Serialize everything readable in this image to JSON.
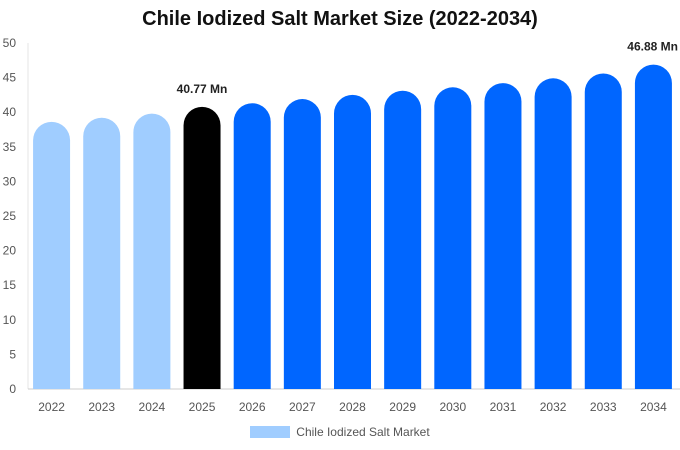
{
  "chart_data": {
    "type": "bar",
    "title": "Chile Iodized Salt Market Size (2022-2034)",
    "xlabel": "",
    "ylabel": "",
    "categories": [
      "2022",
      "2023",
      "2024",
      "2025",
      "2026",
      "2027",
      "2028",
      "2029",
      "2030",
      "2031",
      "2032",
      "2033",
      "2034"
    ],
    "series": [
      {
        "name": "Chile Iodized Salt Market",
        "values": [
          38.6,
          39.2,
          39.8,
          40.77,
          41.3,
          41.9,
          42.5,
          43.1,
          43.6,
          44.2,
          44.9,
          45.6,
          46.88
        ]
      }
    ],
    "bar_colors": [
      "#a0cdff",
      "#a0cdff",
      "#a0cdff",
      "#000000",
      "#0066ff",
      "#0066ff",
      "#0066ff",
      "#0066ff",
      "#0066ff",
      "#0066ff",
      "#0066ff",
      "#0066ff",
      "#0066ff"
    ],
    "data_labels": [
      {
        "category": "2025",
        "text": "40.77 Mn"
      },
      {
        "category": "2034",
        "text": "46.88 Mn"
      }
    ],
    "ylim": [
      0,
      50
    ],
    "yticks": [
      0,
      5,
      10,
      15,
      20,
      25,
      30,
      35,
      40,
      45,
      50
    ],
    "grid": false,
    "legend": {
      "position": "bottom",
      "label": "Chile Iodized Salt Market",
      "color": "#a0cdff"
    }
  }
}
